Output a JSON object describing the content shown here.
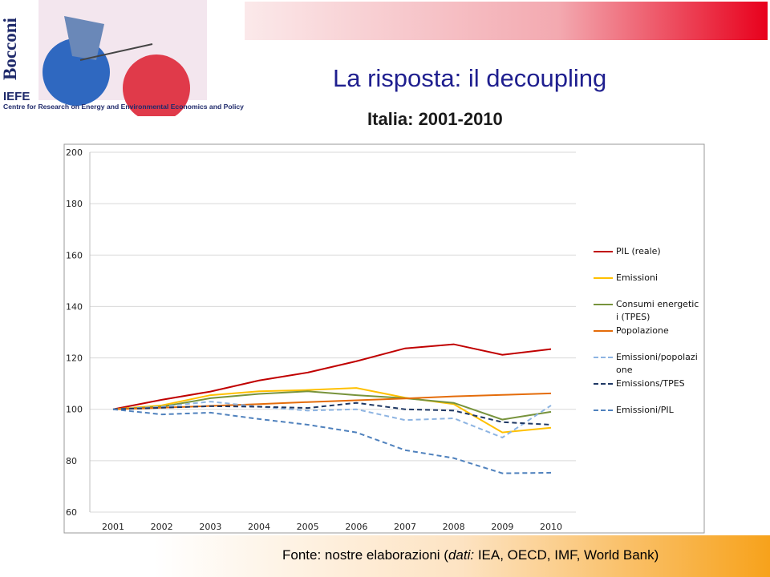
{
  "header": {
    "logo_brand": "Bocconi",
    "logo_acronym": "IEFE",
    "logo_caption": "Centre for Research on Energy and Environmental Economics and Policy",
    "title": "La risposta: il decoupling",
    "subtitle": "Italia: 2001-2010"
  },
  "chart_data": {
    "type": "line",
    "categories": [
      "2001",
      "2002",
      "2003",
      "2004",
      "2005",
      "2006",
      "2007",
      "2008",
      "2009",
      "2010"
    ],
    "ylim": [
      60,
      200
    ],
    "yticks": [
      60,
      80,
      100,
      120,
      140,
      160,
      180,
      200
    ],
    "grid": true,
    "series": [
      {
        "name": "PIL (reale)",
        "color": "#c00000",
        "dashed": false,
        "values": [
          100,
          103.7,
          106.9,
          111.2,
          114.3,
          118.7,
          123.7,
          125.3,
          121.2,
          123.4
        ]
      },
      {
        "name": "Emissioni",
        "color": "#ffc000",
        "dashed": false,
        "values": [
          100,
          101.5,
          105.5,
          107,
          107.5,
          108.3,
          104.5,
          102,
          91,
          92.8
        ]
      },
      {
        "name": "Consumi energetici (TPES)",
        "color": "#77933c",
        "dashed": false,
        "values": [
          100,
          101,
          104.3,
          106,
          107,
          105.5,
          104.3,
          102.5,
          96,
          99
        ]
      },
      {
        "name": "Popolazione",
        "color": "#e46c0a",
        "dashed": false,
        "values": [
          100,
          100.6,
          101.3,
          102,
          102.8,
          103.5,
          104.2,
          105,
          105.6,
          106.2
        ]
      },
      {
        "name": "Emissioni/popolazione",
        "color": "#8db4e2",
        "dashed": true,
        "values": [
          100,
          101,
          103,
          101,
          99.5,
          100,
          95.8,
          96.5,
          89,
          101.5
        ]
      },
      {
        "name": "Emissions/TPES",
        "color": "#1f3864",
        "dashed": true,
        "values": [
          100,
          100.6,
          101.2,
          101,
          100.5,
          102.5,
          100,
          99.5,
          95,
          94
        ]
      },
      {
        "name": "Emissioni/PIL",
        "color": "#4f81bd",
        "dashed": true,
        "values": [
          100,
          98,
          98.7,
          96.2,
          94,
          91,
          84.1,
          81,
          75.1,
          75.3
        ]
      }
    ]
  },
  "footer": {
    "source_start": "Fonte: nostre elaborazioni (",
    "source_italic": "dati:",
    "source_end": " IEA, OECD, IMF, World Bank)"
  }
}
